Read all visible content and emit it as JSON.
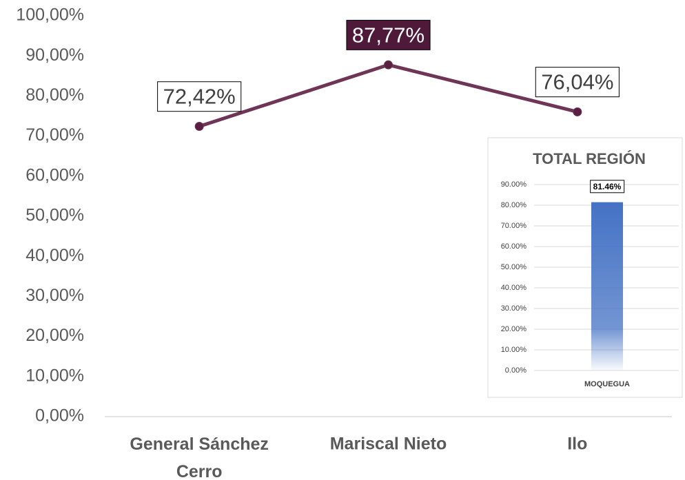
{
  "chart_data": [
    {
      "type": "line",
      "categories": [
        "General Sánchez Cerro",
        "Mariscal Nieto",
        "Ilo"
      ],
      "values": [
        72.42,
        87.77,
        76.04
      ],
      "value_labels": [
        "72,42%",
        "87,77%",
        "76,04%"
      ],
      "label_fills": [
        "#ffffff",
        "#4f1a3a",
        "#ffffff"
      ],
      "color": "#6e3556",
      "ylim": [
        0,
        100
      ],
      "yticks": [
        {
          "value": 0,
          "label": "0,00%"
        },
        {
          "value": 10,
          "label": "10,00%"
        },
        {
          "value": 20,
          "label": "20,00%"
        },
        {
          "value": 30,
          "label": "30,00%"
        },
        {
          "value": 40,
          "label": "40,00%"
        },
        {
          "value": 50,
          "label": "50,00%"
        },
        {
          "value": 60,
          "label": "60,00%"
        },
        {
          "value": 70,
          "label": "70,00%"
        },
        {
          "value": 80,
          "label": "80,00%"
        },
        {
          "value": 90,
          "label": "90,00%"
        },
        {
          "value": 100,
          "label": "100,00%"
        }
      ],
      "grid": false
    },
    {
      "type": "bar",
      "title": "TOTAL REGIÓN",
      "categories": [
        "MOQUEGUA"
      ],
      "values": [
        81.46
      ],
      "value_labels": [
        "81.46%"
      ],
      "color": "#4472c4",
      "ylim": [
        0,
        90
      ],
      "yticks": [
        {
          "value": 0,
          "label": "0.00%"
        },
        {
          "value": 10,
          "label": "10.00%"
        },
        {
          "value": 20,
          "label": "20.00%"
        },
        {
          "value": 30,
          "label": "30.00%"
        },
        {
          "value": 40,
          "label": "40.00%"
        },
        {
          "value": 50,
          "label": "50.00%"
        },
        {
          "value": 60,
          "label": "60.00%"
        },
        {
          "value": 70,
          "label": "70.00%"
        },
        {
          "value": 80,
          "label": "80.00%"
        },
        {
          "value": 90,
          "label": "90.00%"
        }
      ],
      "grid": true
    }
  ]
}
